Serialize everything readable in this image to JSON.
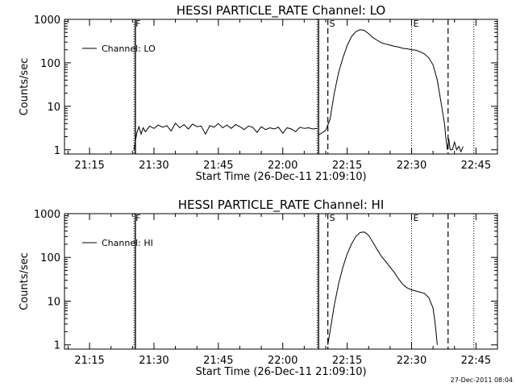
{
  "timestamp": "27-Dec-2011 08:04",
  "chart_data": [
    {
      "type": "line",
      "title": "HESSI PARTICLE_RATE Channel: LO",
      "xlabel": "Start Time (26-Dec-11 21:09:10)",
      "ylabel": "Counts/sec",
      "y_scale": "log",
      "xlim": [
        "21:09:10",
        "22:50:00"
      ],
      "ylim": [
        0.8,
        1000
      ],
      "x_tick_labels": [
        "21:15",
        "21:30",
        "21:45",
        "22:00",
        "22:15",
        "22:30",
        "22:45"
      ],
      "y_tick_labels": [
        "1",
        "10",
        "100",
        "1000"
      ],
      "grid": false,
      "legend": {
        "position": "top-left",
        "entries": [
          "Channel: LO"
        ]
      },
      "vlines": [
        {
          "x": "21:25:20",
          "style": "dotted",
          "label": "F"
        },
        {
          "x": "21:25:40",
          "style": "solid",
          "label": ""
        },
        {
          "x": "22:08:00",
          "style": "dotted",
          "label": ""
        },
        {
          "x": "22:08:20",
          "style": "solid",
          "label": ""
        },
        {
          "x": "22:10:30",
          "style": "dashed",
          "label": "S"
        },
        {
          "x": "22:30:00",
          "style": "dotted",
          "label": "E"
        },
        {
          "x": "22:38:30",
          "style": "dashed",
          "label": ""
        },
        {
          "x": "22:44:30",
          "style": "dotted",
          "label": ""
        }
      ],
      "series": [
        {
          "name": "Channel: LO",
          "segments": [
            {
              "x": [
                "21:25:20",
                "21:26:00",
                "21:26:30",
                "21:27:00",
                "21:27:30",
                "21:28:00",
                "21:29:00",
                "21:30:00",
                "21:31:00",
                "21:32:00",
                "21:33:00",
                "21:34:00",
                "21:35:00",
                "21:36:00",
                "21:37:00",
                "21:38:00",
                "21:39:00",
                "21:40:00",
                "21:41:00",
                "21:42:00",
                "21:43:00",
                "21:44:00",
                "21:45:00",
                "21:46:00",
                "21:47:00",
                "21:48:00",
                "21:49:00",
                "21:50:00",
                "21:51:00",
                "21:52:00",
                "21:53:00",
                "21:54:00",
                "21:55:00",
                "21:56:00",
                "21:57:00",
                "21:58:00",
                "21:59:00",
                "22:00:00",
                "22:01:00",
                "22:02:00",
                "22:03:00",
                "22:04:00",
                "22:05:00",
                "22:06:00",
                "22:07:00",
                "22:08:00"
              ],
              "y": [
                1,
                2.4,
                3.4,
                2.3,
                3.2,
                2.6,
                3.5,
                3.1,
                3.7,
                3.3,
                3.6,
                2.7,
                4.1,
                3.2,
                3.8,
                3.0,
                3.9,
                3.4,
                3.5,
                2.3,
                3.6,
                3.3,
                4.0,
                3.2,
                3.7,
                3.1,
                3.8,
                3.4,
                2.9,
                3.5,
                3.3,
                2.5,
                3.4,
                2.9,
                3.2,
                3.0,
                3.3,
                2.4,
                3.2,
                3.0,
                2.6,
                3.3,
                3.1,
                3.2,
                3.0,
                3.1
              ]
            },
            {
              "x": [
                "22:08:20",
                "22:09:00",
                "22:10:00",
                "22:11:00",
                "22:12:00",
                "22:13:00",
                "22:14:00",
                "22:15:00",
                "22:16:00",
                "22:17:00",
                "22:18:00",
                "22:19:00",
                "22:20:00",
                "22:21:00",
                "22:22:00",
                "22:23:00",
                "22:24:00",
                "22:25:00",
                "22:26:00",
                "22:27:00",
                "22:28:00",
                "22:29:00",
                "22:30:00",
                "22:31:00",
                "22:32:00",
                "22:33:00",
                "22:34:00",
                "22:35:00",
                "22:36:00",
                "22:37:00",
                "22:37:40",
                "22:38:00",
                "22:38:20",
                "22:38:40",
                "22:39:00",
                "22:39:30",
                "22:40:00",
                "22:40:30",
                "22:41:00",
                "22:41:30",
                "22:42:00"
              ],
              "y": [
                2.2,
                2.4,
                2.8,
                5,
                20,
                60,
                130,
                250,
                400,
                520,
                580,
                560,
                470,
                380,
                330,
                290,
                270,
                255,
                240,
                230,
                215,
                210,
                200,
                195,
                180,
                160,
                130,
                90,
                40,
                10,
                4,
                1.8,
                1,
                1.8,
                1,
                1,
                1.5,
                1,
                1.2,
                0.9,
                1.2
              ]
            }
          ]
        }
      ]
    },
    {
      "type": "line",
      "title": "HESSI PARTICLE_RATE Channel: HI",
      "xlabel": "Start Time (26-Dec-11 21:09:10)",
      "ylabel": "Counts/sec",
      "y_scale": "log",
      "xlim": [
        "21:09:10",
        "22:50:00"
      ],
      "ylim": [
        0.8,
        1000
      ],
      "x_tick_labels": [
        "21:15",
        "21:30",
        "21:45",
        "22:00",
        "22:15",
        "22:30",
        "22:45"
      ],
      "y_tick_labels": [
        "1",
        "10",
        "100",
        "1000"
      ],
      "grid": false,
      "legend": {
        "position": "top-left",
        "entries": [
          "Channel: HI"
        ]
      },
      "vlines": [
        {
          "x": "21:25:20",
          "style": "dotted",
          "label": "F"
        },
        {
          "x": "21:25:40",
          "style": "solid",
          "label": ""
        },
        {
          "x": "22:08:00",
          "style": "dotted",
          "label": ""
        },
        {
          "x": "22:08:20",
          "style": "solid",
          "label": ""
        },
        {
          "x": "22:10:30",
          "style": "dashed",
          "label": "S"
        },
        {
          "x": "22:30:00",
          "style": "dotted",
          "label": "E"
        },
        {
          "x": "22:38:30",
          "style": "dashed",
          "label": ""
        },
        {
          "x": "22:44:30",
          "style": "dotted",
          "label": ""
        }
      ],
      "series": [
        {
          "name": "Channel: HI",
          "segments": [
            {
              "x": [
                "22:10:30",
                "22:11:00",
                "22:12:00",
                "22:13:00",
                "22:14:00",
                "22:15:00",
                "22:16:00",
                "22:17:00",
                "22:18:00",
                "22:19:00",
                "22:20:00",
                "22:21:00",
                "22:22:00",
                "22:23:00",
                "22:24:00",
                "22:25:00",
                "22:26:00",
                "22:27:00",
                "22:28:00",
                "22:29:00",
                "22:30:00",
                "22:31:00",
                "22:32:00",
                "22:33:00",
                "22:34:00",
                "22:35:00",
                "22:35:30",
                "22:36:00"
              ],
              "y": [
                1,
                2,
                8,
                25,
                60,
                120,
                200,
                300,
                370,
                380,
                320,
                220,
                150,
                105,
                80,
                60,
                45,
                32,
                24,
                20,
                18,
                17,
                16,
                15,
                12,
                7,
                3,
                1
              ]
            }
          ]
        }
      ]
    }
  ]
}
